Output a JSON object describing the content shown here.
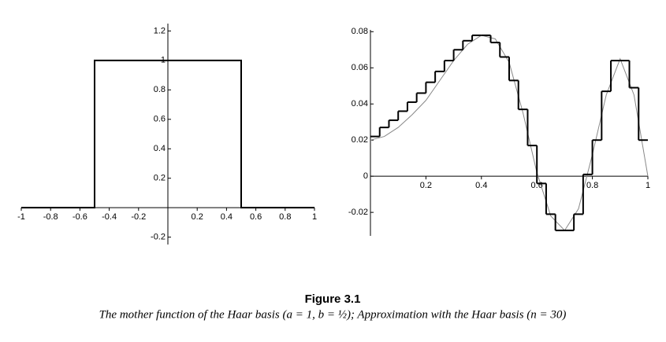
{
  "chart_data": [
    {
      "type": "line",
      "x": [
        -1,
        -0.5,
        -0.5,
        0.5,
        0.5,
        1
      ],
      "values": [
        0,
        0,
        1,
        1,
        0,
        0
      ],
      "color": "#000000",
      "xlim": [
        -1,
        1
      ],
      "ylim": [
        -0.25,
        1.25
      ],
      "xticks": [
        -1,
        -0.8,
        -0.6,
        -0.4,
        -0.2,
        0.2,
        0.4,
        0.6,
        0.8,
        1
      ],
      "yticks": [
        -0.2,
        0.2,
        0.4,
        0.6,
        0.8,
        1,
        1.2
      ],
      "grid": false
    },
    {
      "type": "line",
      "x": [
        0,
        0.05,
        0.1,
        0.15,
        0.2,
        0.25,
        0.3,
        0.35,
        0.4,
        0.45,
        0.5,
        0.55,
        0.6,
        0.65,
        0.7,
        0.75,
        0.8,
        0.85,
        0.9,
        0.95,
        1
      ],
      "series": [
        {
          "color": "#888888",
          "values": [
            0.02,
            0.022,
            0.027,
            0.034,
            0.042,
            0.053,
            0.064,
            0.073,
            0.078,
            0.076,
            0.063,
            0.035,
            0.002,
            -0.022,
            -0.03,
            -0.018,
            0.012,
            0.045,
            0.065,
            0.045,
            0
          ]
        }
      ],
      "steps": {
        "color": "#000000",
        "values": [
          0.022,
          0.027,
          0.031,
          0.036,
          0.041,
          0.046,
          0.052,
          0.058,
          0.064,
          0.07,
          0.075,
          0.078,
          0.078,
          0.074,
          0.066,
          0.053,
          0.037,
          0.017,
          -0.004,
          -0.021,
          -0.03,
          -0.03,
          -0.021,
          0.001,
          0.02,
          0.047,
          0.064,
          0.064,
          0.049,
          0.02
        ]
      },
      "xlim": [
        0,
        1
      ],
      "ylim": [
        -0.033,
        0.081
      ],
      "xticks": [
        0.2,
        0.4,
        0.6,
        0.8,
        1
      ],
      "yticks": [
        -0.02,
        0,
        0.02,
        0.04,
        0.06,
        0.08
      ],
      "grid": false
    }
  ],
  "figure_label": "Figure 3.1",
  "caption": "The mother function of the Haar basis (a = 1, b = ½); Approximation with the Haar basis (n = 30)"
}
